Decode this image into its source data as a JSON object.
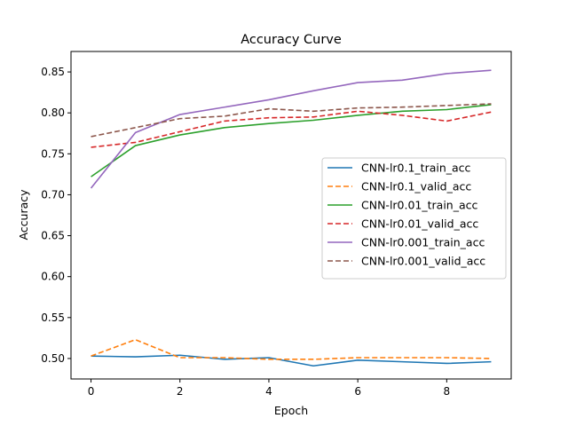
{
  "chart_data": {
    "type": "line",
    "title": "Accuracy Curve",
    "xlabel": "Epoch",
    "ylabel": "Accuracy",
    "xlim": [
      -0.45,
      9.45
    ],
    "ylim": [
      0.475,
      0.875
    ],
    "xticks": [
      0,
      2,
      4,
      6,
      8
    ],
    "xtick_labels": [
      "0",
      "2",
      "4",
      "6",
      "8"
    ],
    "yticks": [
      0.5,
      0.55,
      0.6,
      0.65,
      0.7,
      0.75,
      0.8,
      0.85
    ],
    "ytick_labels": [
      "0.50",
      "0.55",
      "0.60",
      "0.65",
      "0.70",
      "0.75",
      "0.80",
      "0.85"
    ],
    "grid": false,
    "legend_position": "center-right",
    "x": [
      0,
      1,
      2,
      3,
      4,
      5,
      6,
      7,
      8,
      9
    ],
    "series": [
      {
        "name": "CNN-lr0.1_train_acc",
        "color": "#1f77b4",
        "dash": "solid",
        "values": [
          0.503,
          0.502,
          0.504,
          0.499,
          0.501,
          0.491,
          0.498,
          0.496,
          0.494,
          0.496
        ]
      },
      {
        "name": "CNN-lr0.1_valid_acc",
        "color": "#ff7f0e",
        "dash": "dashed",
        "values": [
          0.503,
          0.523,
          0.501,
          0.501,
          0.499,
          0.499,
          0.501,
          0.501,
          0.501,
          0.5
        ]
      },
      {
        "name": "CNN-lr0.01_train_acc",
        "color": "#2ca02c",
        "dash": "solid",
        "values": [
          0.722,
          0.76,
          0.773,
          0.782,
          0.787,
          0.791,
          0.797,
          0.802,
          0.804,
          0.81
        ]
      },
      {
        "name": "CNN-lr0.01_valid_acc",
        "color": "#d62728",
        "dash": "dashed",
        "values": [
          0.758,
          0.764,
          0.777,
          0.79,
          0.794,
          0.795,
          0.802,
          0.797,
          0.79,
          0.801
        ]
      },
      {
        "name": "CNN-lr0.001_train_acc",
        "color": "#9467bd",
        "dash": "solid",
        "values": [
          0.708,
          0.776,
          0.798,
          0.807,
          0.816,
          0.827,
          0.837,
          0.84,
          0.848,
          0.852
        ]
      },
      {
        "name": "CNN-lr0.001_valid_acc",
        "color": "#8c564b",
        "dash": "dashed",
        "values": [
          0.771,
          0.782,
          0.793,
          0.796,
          0.805,
          0.802,
          0.806,
          0.807,
          0.809,
          0.811
        ]
      }
    ]
  }
}
